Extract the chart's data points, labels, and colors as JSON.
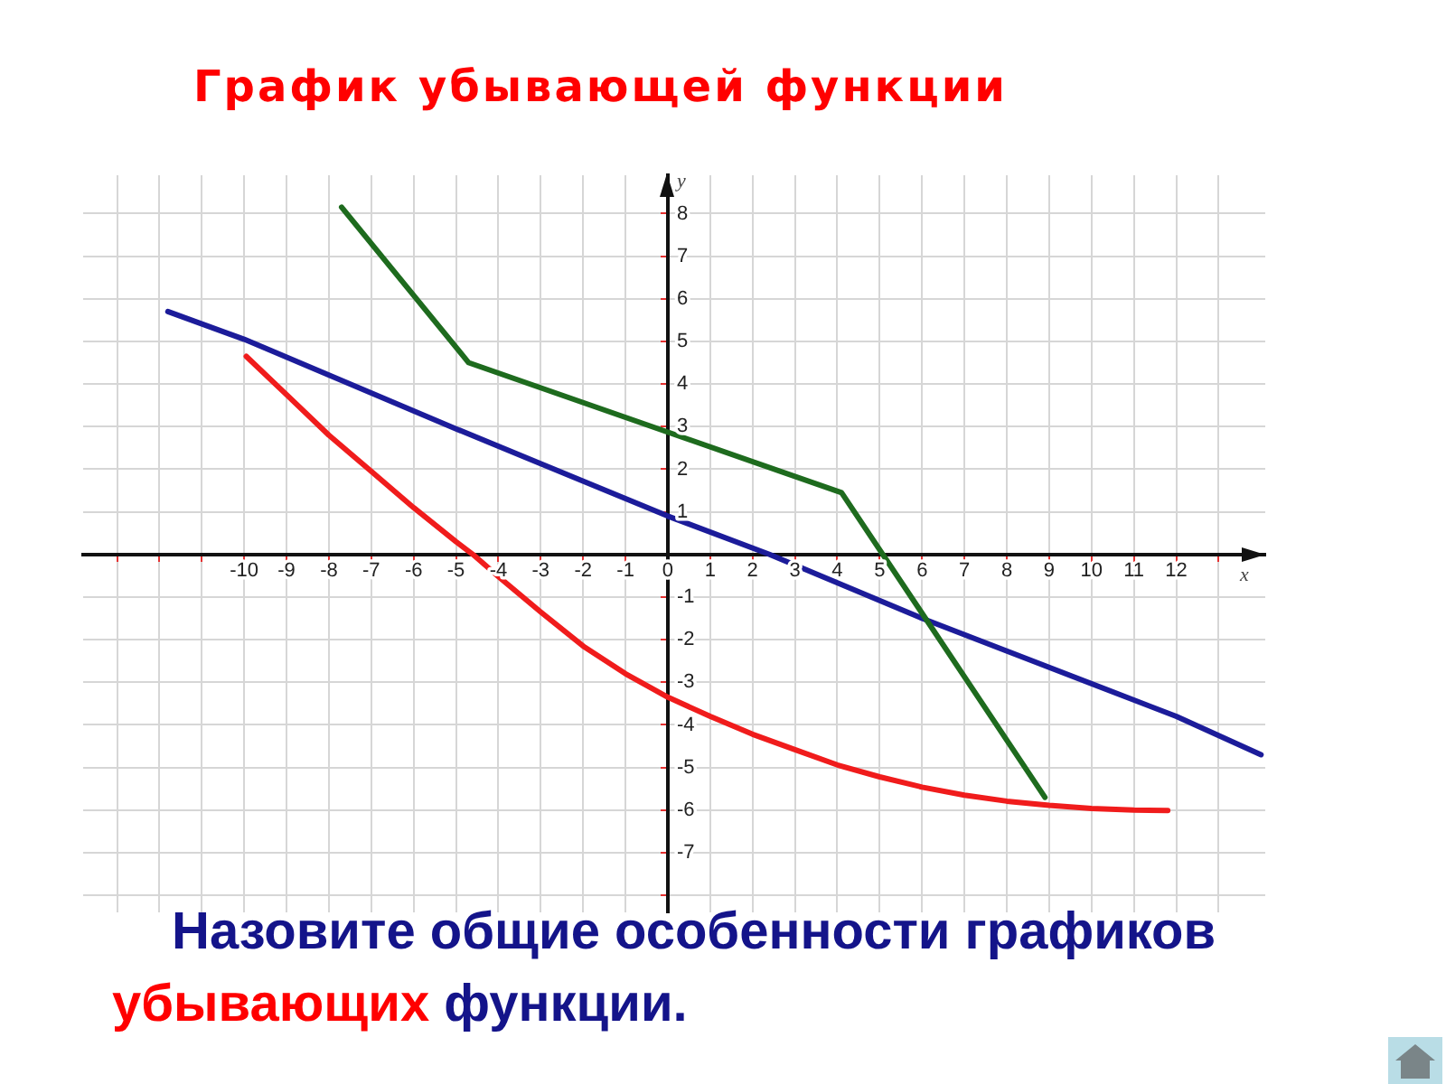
{
  "chart_data": {
    "type": "line",
    "title": "График убывающей функции",
    "xlabel": "x",
    "ylabel": "y",
    "annotations": [
      "Назовите общие особенности графиков убывающих функции."
    ],
    "xlim": [
      -13.8,
      14.1
    ],
    "ylim": [
      -8.4,
      8.9
    ],
    "xticks": [
      {
        "value": -13,
        "label": null
      },
      {
        "value": -12,
        "label": null
      },
      {
        "value": -11,
        "label": null
      },
      -10,
      -9,
      -8,
      -7,
      -6,
      -5,
      -4,
      -3,
      -2,
      -1,
      0,
      1,
      2,
      3,
      4,
      5,
      6,
      7,
      8,
      9,
      10,
      11,
      12,
      {
        "value": 13,
        "label": null
      }
    ],
    "yticks": [
      {
        "value": -8,
        "label": null
      },
      -7,
      -6,
      -5,
      -4,
      -3,
      -2,
      -1,
      {
        "value": 0,
        "label": null
      },
      1,
      2,
      3,
      4,
      5,
      6,
      7,
      8
    ],
    "grid": true,
    "legend": false,
    "marker": "none",
    "series": [
      {
        "color": "#1e6b1e",
        "x": [
          -7.7,
          -4.7,
          4.1,
          8.9
        ],
        "values": [
          8.15,
          4.5,
          1.45,
          -5.7
        ]
      },
      {
        "color": "#1c1c9a",
        "x": [
          -11.8,
          -10,
          -5,
          0,
          2.4,
          6,
          12,
          14
        ],
        "values": [
          5.7,
          5.05,
          2.95,
          0.9,
          0,
          -1.5,
          -3.8,
          -4.7
        ]
      },
      {
        "color": "#f01c1c",
        "x": [
          -9.95,
          -9,
          -8,
          -7,
          -6,
          -5,
          -4.6,
          -4,
          -3,
          -2,
          -1,
          0,
          1,
          2,
          3,
          4,
          5,
          6,
          7,
          8,
          9,
          10,
          11,
          11.8
        ],
        "values": [
          4.65,
          3.75,
          2.8,
          1.95,
          1.1,
          0.3,
          0,
          -0.52,
          -1.35,
          -2.15,
          -2.8,
          -3.35,
          -3.8,
          -4.22,
          -4.58,
          -4.94,
          -5.22,
          -5.46,
          -5.65,
          -5.79,
          -5.89,
          -5.96,
          -6.0,
          -6.01
        ]
      }
    ]
  }
}
